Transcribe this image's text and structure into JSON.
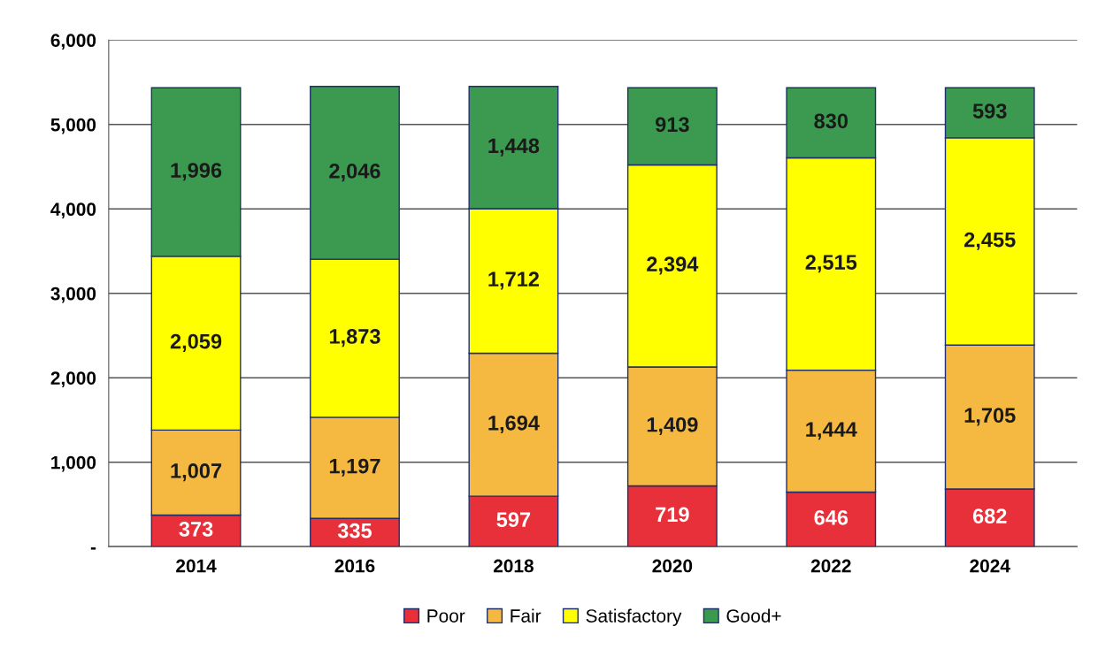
{
  "chart_data": {
    "type": "bar",
    "stacked": true,
    "categories": [
      "2014",
      "2016",
      "2018",
      "2020",
      "2022",
      "2024"
    ],
    "series": [
      {
        "name": "Poor",
        "color": "#e8303a",
        "values": [
          373,
          335,
          597,
          719,
          646,
          682
        ],
        "value_labels": [
          "373",
          "335",
          "597",
          "719",
          "646",
          "682"
        ]
      },
      {
        "name": "Fair",
        "color": "#f5b942",
        "values": [
          1007,
          1197,
          1694,
          1409,
          1444,
          1705
        ],
        "value_labels": [
          "1,007",
          "1,197",
          "1,694",
          "1,409",
          "1,444",
          "1,705"
        ]
      },
      {
        "name": "Satisfactory",
        "color": "#ffff00",
        "values": [
          2059,
          1873,
          1712,
          2394,
          2515,
          2455
        ],
        "value_labels": [
          "2,059",
          "1,873",
          "1,712",
          "2,394",
          "2,515",
          "2,455"
        ]
      },
      {
        "name": "Good+",
        "color": "#3c9a50",
        "values": [
          1996,
          2046,
          1448,
          913,
          830,
          593
        ],
        "value_labels": [
          "1,996",
          "2,046",
          "1,448",
          "913",
          "830",
          "593"
        ]
      }
    ],
    "ylim": [
      0,
      6000
    ],
    "yticks": [
      {
        "value": 0,
        "label": "-"
      },
      {
        "value": 1000,
        "label": "1,000"
      },
      {
        "value": 2000,
        "label": "2,000"
      },
      {
        "value": 3000,
        "label": "3,000"
      },
      {
        "value": 4000,
        "label": "4,000"
      },
      {
        "value": 5000,
        "label": "5,000"
      },
      {
        "value": 6000,
        "label": "6,000"
      }
    ],
    "grid": "y",
    "legend": "bottom"
  }
}
